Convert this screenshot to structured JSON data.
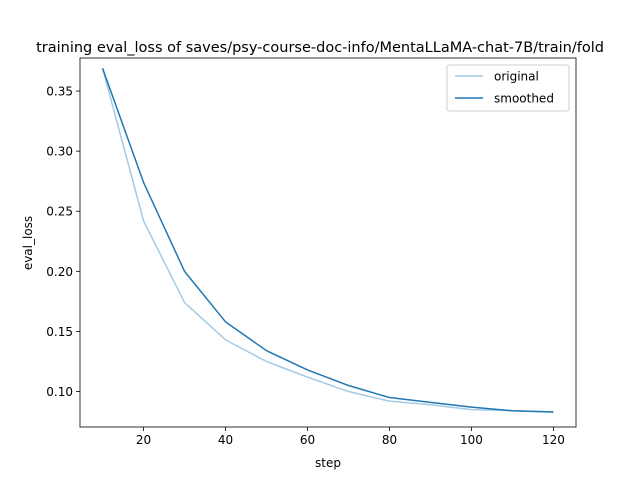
{
  "chart_data": {
    "type": "line",
    "title": "training eval_loss of saves/psy-course-doc-info/MentaLLaMA-chat-7B/train/fold",
    "xlabel": "step",
    "ylabel": "eval_loss",
    "xlim": [
      4.5,
      125.5
    ],
    "ylim": [
      0.0705,
      0.3775
    ],
    "xticks": [
      20,
      40,
      60,
      80,
      100,
      120
    ],
    "xtick_labels": [
      "20",
      "40",
      "60",
      "80",
      "100",
      "120"
    ],
    "yticks": [
      0.1,
      0.15,
      0.2,
      0.25,
      0.3,
      0.35
    ],
    "ytick_labels": [
      "0.10",
      "0.15",
      "0.20",
      "0.25",
      "0.30",
      "0.35"
    ],
    "grid": false,
    "legend": "top-right",
    "x": [
      10,
      20,
      30,
      40,
      50,
      60,
      70,
      80,
      90,
      100,
      110,
      120
    ],
    "series": [
      {
        "name": "original",
        "color": "#a6cae3",
        "values": [
          0.369,
          0.242,
          0.174,
          0.143,
          0.125,
          0.112,
          0.1,
          0.092,
          0.089,
          0.085,
          0.084,
          0.083
        ]
      },
      {
        "name": "smoothed",
        "color": "#1f77b4",
        "values": [
          0.369,
          0.274,
          0.2,
          0.158,
          0.134,
          0.118,
          0.105,
          0.095,
          0.091,
          0.087,
          0.084,
          0.083
        ]
      }
    ]
  }
}
